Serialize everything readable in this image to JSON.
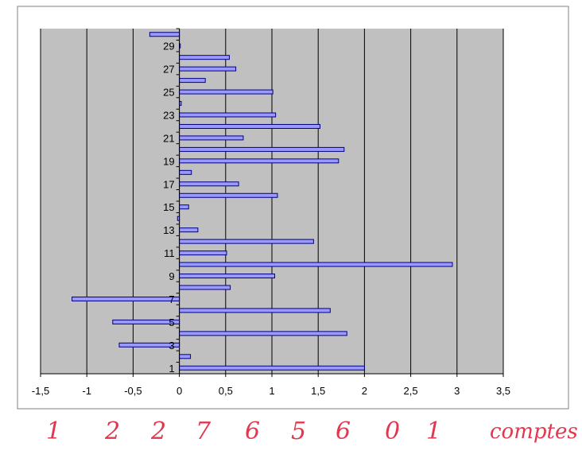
{
  "chart_data": {
    "type": "bar",
    "orientation": "horizontal",
    "title": "",
    "xlabel": "",
    "ylabel": "",
    "xlim": [
      -1.5,
      3.5
    ],
    "x_ticks": [
      "-1,5",
      "-1",
      "-0,5",
      "0",
      "0,5",
      "1",
      "1,5",
      "2",
      "2,5",
      "3",
      "3,5"
    ],
    "x_tick_values": [
      -1.5,
      -1,
      -0.5,
      0,
      0.5,
      1,
      1.5,
      2,
      2.5,
      3,
      3.5
    ],
    "y_tick_labels": [
      "1",
      "3",
      "5",
      "7",
      "9",
      "11",
      "13",
      "15",
      "17",
      "19",
      "21",
      "23",
      "25",
      "27",
      "29"
    ],
    "categories": [
      1,
      2,
      3,
      4,
      5,
      6,
      7,
      8,
      9,
      10,
      11,
      12,
      13,
      14,
      15,
      16,
      17,
      18,
      19,
      20,
      21,
      22,
      23,
      24,
      25,
      26,
      27,
      28,
      29,
      30
    ],
    "values": [
      2.0,
      0.12,
      -0.65,
      1.81,
      -0.72,
      1.63,
      -1.16,
      0.55,
      1.03,
      2.95,
      0.51,
      1.45,
      0.2,
      -0.02,
      0.1,
      1.06,
      0.64,
      0.13,
      1.72,
      1.78,
      0.69,
      1.52,
      1.04,
      0.02,
      1.01,
      0.28,
      0.61,
      0.54,
      0.01,
      -0.32
    ],
    "grid": true,
    "legend": "none",
    "colors": {
      "plot_bg": "#c0c0c0",
      "bar_fill": "#9999ff",
      "bar_edge": "#000080"
    }
  },
  "handwritten": {
    "digits": [
      "1",
      "2",
      "2",
      "7",
      "6",
      "5",
      "6",
      "0",
      "1"
    ],
    "word": "comptes",
    "color": "#e0384f"
  }
}
